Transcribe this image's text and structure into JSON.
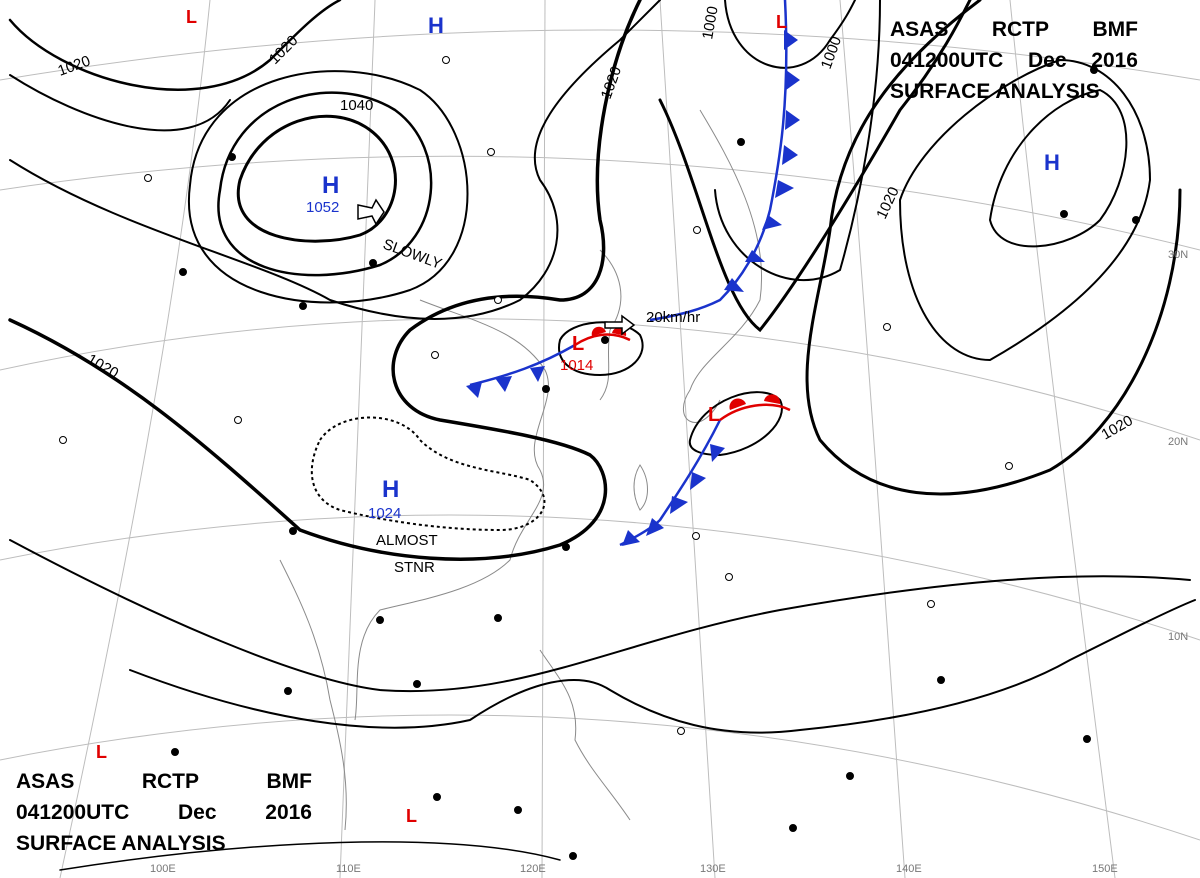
{
  "header": {
    "agency": "ASAS",
    "station": "RCTP",
    "office": "BMF",
    "datetime": "041200UTC",
    "month": "Dec",
    "year": "2016",
    "product": "SURFACE ANALYSIS"
  },
  "isobars": {
    "label_1020": "1020",
    "label_1040": "1040",
    "label_1000": "1000"
  },
  "pressure_centers": [
    {
      "type": "H",
      "value": "1052"
    },
    {
      "type": "H",
      "value": "1024"
    },
    {
      "type": "L",
      "value": "1014"
    }
  ],
  "centers": {
    "high": "H",
    "low": "L"
  },
  "motion": {
    "slowly": "SLOWLY",
    "speed": "20km/hr",
    "almost": "ALMOST",
    "stnr": "STNR"
  },
  "latitudes": [
    "30N",
    "20N",
    "10N"
  ],
  "longitudes": [
    "100E",
    "110E",
    "120E",
    "130E",
    "140E",
    "150E"
  ],
  "colors": {
    "high": "#1a33cc",
    "low": "#e00000",
    "cold_front": "#1a33cc",
    "warm_front": "#e00000",
    "isobar": "#000000",
    "graticule": "#bdbdbd",
    "coast": "#8a8a8a"
  }
}
